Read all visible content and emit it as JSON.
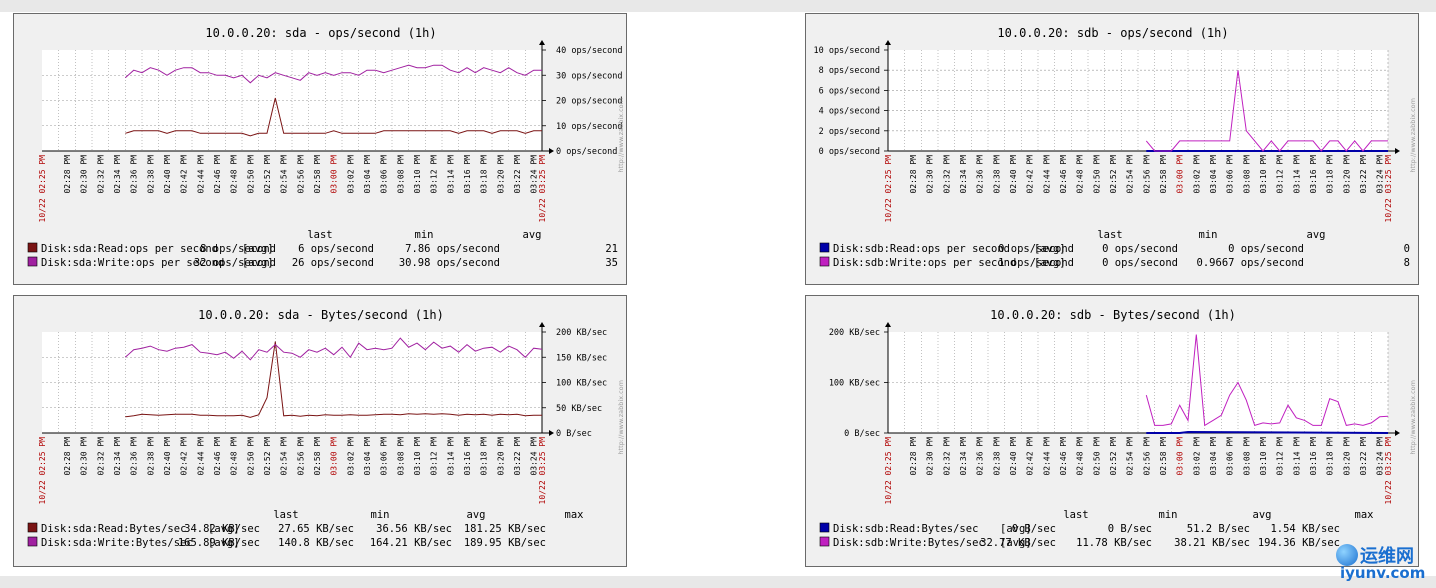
{
  "time_labels": [
    "02:28 PM",
    "02:30 PM",
    "02:32 PM",
    "02:34 PM",
    "02:36 PM",
    "02:38 PM",
    "02:40 PM",
    "02:42 PM",
    "02:44 PM",
    "02:46 PM",
    "02:48 PM",
    "02:50 PM",
    "02:52 PM",
    "02:54 PM",
    "02:56 PM",
    "02:58 PM",
    "03:00 PM",
    "03:02 PM",
    "03:04 PM",
    "03:06 PM",
    "03:08 PM",
    "03:10 PM",
    "03:12 PM",
    "03:14 PM",
    "03:16 PM",
    "03:18 PM",
    "03:20 PM",
    "03:22 PM",
    "03:24 PM"
  ],
  "time_start_label": "10/22 02:25 PM",
  "time_end_label": "10/22 03:25 PM",
  "time_mid_label": "03:00 PM",
  "generated_by": "http://www.zabbix.com",
  "watermark": {
    "top": "运维网",
    "bottom": "iyunv.com"
  },
  "chart_data": [
    {
      "id": "sda-ops",
      "type": "line",
      "title": "10.0.0.20: sda - ops/second (1h)",
      "y_ticks": [
        "0 ops/second",
        "10 ops/second",
        "20 ops/second",
        "30 ops/second",
        "40 ops/second"
      ],
      "ylim": [
        0,
        40
      ],
      "y_axis_side": "right",
      "x_range_minutes": [
        0,
        60
      ],
      "grid": true,
      "legend_position": "bottom-left",
      "legend_headers": [
        "last",
        "min",
        "avg"
      ],
      "series": [
        {
          "name": "Disk:sda:Read:ops per second",
          "color": "#7a1414",
          "agg": "[avg]",
          "last": "8 ops/second",
          "min": "6 ops/second",
          "avg": "7.86 ops/second",
          "max": "21",
          "x": [
            10,
            11,
            12,
            13,
            14,
            15,
            16,
            17,
            18,
            19,
            20,
            21,
            22,
            23,
            24,
            25,
            26,
            27,
            28,
            29,
            30,
            31,
            32,
            33,
            34,
            35,
            36,
            37,
            38,
            39,
            40,
            41,
            42,
            43,
            44,
            45,
            46,
            47,
            48,
            49,
            50,
            51,
            52,
            53,
            54,
            55,
            56,
            57,
            58,
            59,
            60
          ],
          "values": [
            7,
            8,
            8,
            8,
            8,
            7,
            8,
            8,
            8,
            7,
            7,
            7,
            7,
            7,
            7,
            6,
            7,
            7,
            21,
            7,
            7,
            7,
            7,
            7,
            7,
            8,
            7,
            7,
            7,
            7,
            7,
            8,
            8,
            8,
            8,
            8,
            8,
            8,
            8,
            8,
            7,
            8,
            8,
            8,
            7,
            8,
            8,
            8,
            7,
            8,
            8
          ]
        },
        {
          "name": "Disk:sda:Write:ops per second",
          "color": "#a020a0",
          "agg": "[avg]",
          "last": "32 ops/second",
          "min": "26 ops/second",
          "avg": "30.98 ops/second",
          "max": "35",
          "x": [
            10,
            11,
            12,
            13,
            14,
            15,
            16,
            17,
            18,
            19,
            20,
            21,
            22,
            23,
            24,
            25,
            26,
            27,
            28,
            29,
            30,
            31,
            32,
            33,
            34,
            35,
            36,
            37,
            38,
            39,
            40,
            41,
            42,
            43,
            44,
            45,
            46,
            47,
            48,
            49,
            50,
            51,
            52,
            53,
            54,
            55,
            56,
            57,
            58,
            59,
            60
          ],
          "values": [
            29,
            32,
            31,
            33,
            32,
            30,
            32,
            33,
            33,
            31,
            31,
            30,
            30,
            29,
            30,
            27,
            30,
            29,
            31,
            30,
            29,
            28,
            31,
            30,
            31,
            30,
            31,
            31,
            30,
            32,
            32,
            31,
            32,
            33,
            34,
            33,
            33,
            34,
            34,
            32,
            31,
            33,
            31,
            33,
            32,
            31,
            33,
            31,
            30,
            32,
            32
          ]
        }
      ]
    },
    {
      "id": "sdb-ops",
      "type": "line",
      "title": "10.0.0.20: sdb - ops/second (1h)",
      "y_ticks": [
        "0 ops/second",
        "2 ops/second",
        "4 ops/second",
        "6 ops/second",
        "8 ops/second",
        "10 ops/second"
      ],
      "ylim": [
        0,
        10
      ],
      "y_axis_side": "left",
      "x_range_minutes": [
        0,
        60
      ],
      "grid": true,
      "legend_position": "bottom-left",
      "legend_headers": [
        "last",
        "min",
        "avg"
      ],
      "series": [
        {
          "name": "Disk:sdb:Read:ops per second",
          "color": "#0000a8",
          "agg": "[avg]",
          "last": "0 ops/second",
          "min": "0 ops/second",
          "avg": "0 ops/second",
          "max": "0",
          "x": [
            31,
            60
          ],
          "values": [
            0,
            0
          ]
        },
        {
          "name": "Disk:sdb:Write:ops per second",
          "color": "#c020c0",
          "agg": "[avg]",
          "last": "1 ops/second",
          "min": "0 ops/second",
          "avg": "0.9667 ops/second",
          "max": "8",
          "x": [
            31,
            32,
            33,
            34,
            35,
            36,
            37,
            38,
            39,
            40,
            41,
            42,
            43,
            44,
            45,
            46,
            47,
            48,
            49,
            50,
            51,
            52,
            53,
            54,
            55,
            56,
            57,
            58,
            59,
            60
          ],
          "values": [
            1,
            0,
            0,
            0,
            1,
            1,
            1,
            1,
            1,
            1,
            1,
            8,
            2,
            1,
            0,
            1,
            0,
            1,
            1,
            1,
            1,
            0,
            1,
            1,
            0,
            1,
            0,
            1,
            1,
            1
          ]
        }
      ]
    },
    {
      "id": "sda-bytes",
      "type": "line",
      "title": "10.0.0.20: sda - Bytes/second (1h)",
      "y_ticks": [
        "0 B/sec",
        "50 KB/sec",
        "100 KB/sec",
        "150 KB/sec",
        "200 KB/sec"
      ],
      "ylim": [
        0,
        200
      ],
      "y_axis_side": "right",
      "x_range_minutes": [
        0,
        60
      ],
      "grid": true,
      "legend_position": "bottom-left",
      "legend_headers": [
        "last",
        "min",
        "avg",
        "max"
      ],
      "series": [
        {
          "name": "Disk:sda:Read:Bytes/sec",
          "color": "#7a1414",
          "agg": "[avg]",
          "last": "34.82 KB/sec",
          "min": "27.65 KB/sec",
          "avg": "36.56 KB/sec",
          "max": "181.25 KB/sec",
          "x": [
            10,
            11,
            12,
            13,
            14,
            15,
            16,
            17,
            18,
            19,
            20,
            21,
            22,
            23,
            24,
            25,
            26,
            27,
            28,
            29,
            30,
            31,
            32,
            33,
            34,
            35,
            36,
            37,
            38,
            39,
            40,
            41,
            42,
            43,
            44,
            45,
            46,
            47,
            48,
            49,
            50,
            51,
            52,
            53,
            54,
            55,
            56,
            57,
            58,
            59,
            60
          ],
          "values": [
            32,
            34,
            37,
            36,
            35,
            36,
            37,
            37,
            37,
            35,
            35,
            34,
            34,
            34,
            35,
            31,
            36,
            70,
            181,
            34,
            35,
            33,
            35,
            34,
            36,
            35,
            35,
            36,
            35,
            35,
            36,
            37,
            37,
            36,
            38,
            37,
            38,
            37,
            38,
            37,
            35,
            37,
            36,
            37,
            35,
            37,
            36,
            37,
            34,
            35,
            35
          ]
        },
        {
          "name": "Disk:sda:Write:Bytes/sec",
          "color": "#a020a0",
          "agg": "[avg]",
          "last": "165.89 KB/sec",
          "min": "140.8 KB/sec",
          "avg": "164.21 KB/sec",
          "max": "189.95 KB/sec",
          "x": [
            10,
            11,
            12,
            13,
            14,
            15,
            16,
            17,
            18,
            19,
            20,
            21,
            22,
            23,
            24,
            25,
            26,
            27,
            28,
            29,
            30,
            31,
            32,
            33,
            34,
            35,
            36,
            37,
            38,
            39,
            40,
            41,
            42,
            43,
            44,
            45,
            46,
            47,
            48,
            49,
            50,
            51,
            52,
            53,
            54,
            55,
            56,
            57,
            58,
            59,
            60
          ],
          "values": [
            150,
            165,
            168,
            172,
            165,
            162,
            168,
            170,
            175,
            160,
            158,
            155,
            160,
            148,
            162,
            145,
            165,
            160,
            175,
            160,
            158,
            150,
            165,
            160,
            168,
            155,
            170,
            150,
            178,
            165,
            168,
            165,
            168,
            188,
            170,
            178,
            165,
            180,
            168,
            172,
            160,
            175,
            162,
            168,
            170,
            160,
            172,
            165,
            150,
            168,
            166
          ]
        }
      ]
    },
    {
      "id": "sdb-bytes",
      "type": "line",
      "title": "10.0.0.20: sdb - Bytes/second (1h)",
      "y_ticks": [
        "0 B/sec",
        "100 KB/sec",
        "200 KB/sec"
      ],
      "ylim": [
        0,
        200
      ],
      "y_axis_side": "left",
      "x_range_minutes": [
        0,
        60
      ],
      "grid": true,
      "legend_position": "bottom-left",
      "legend_headers": [
        "last",
        "min",
        "avg",
        "max"
      ],
      "series": [
        {
          "name": "Disk:sdb:Read:Bytes/sec",
          "color": "#0000a8",
          "agg": "[avg]",
          "last": "0 B/sec",
          "min": "0 B/sec",
          "avg": "51.2 B/sec",
          "max": "1.54 KB/sec",
          "x": [
            31,
            35,
            36,
            60
          ],
          "values": [
            0,
            0,
            2,
            0
          ]
        },
        {
          "name": "Disk:sdb:Write:Bytes/sec",
          "color": "#c020c0",
          "agg": "[avg]",
          "last": "32.77 KB/sec",
          "min": "11.78 KB/sec",
          "avg": "38.21 KB/sec",
          "max": "194.36 KB/sec",
          "x": [
            31,
            32,
            33,
            34,
            35,
            36,
            37,
            38,
            39,
            40,
            41,
            42,
            43,
            44,
            45,
            46,
            47,
            48,
            49,
            50,
            51,
            52,
            53,
            54,
            55,
            56,
            57,
            58,
            59,
            60
          ],
          "values": [
            75,
            15,
            15,
            18,
            55,
            25,
            195,
            15,
            25,
            35,
            75,
            100,
            65,
            15,
            20,
            18,
            20,
            55,
            30,
            25,
            15,
            15,
            68,
            62,
            15,
            18,
            15,
            20,
            32,
            33
          ]
        }
      ]
    }
  ]
}
